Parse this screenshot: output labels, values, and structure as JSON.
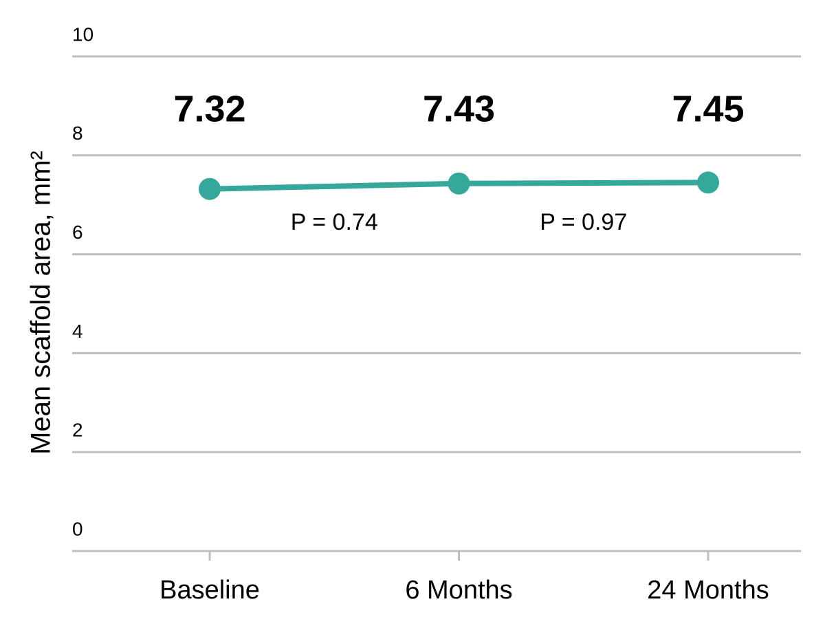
{
  "chart_data": {
    "type": "line",
    "y_axis_label": "Mean scaffold area, mm²",
    "categories": [
      "Baseline",
      "6 Months",
      "24 Months"
    ],
    "values": [
      7.32,
      7.43,
      7.45
    ],
    "color": "#35a89b",
    "annotations": [
      "P = 0.74",
      "P = 0.97"
    ],
    "ylim": [
      0,
      10
    ],
    "yticks": [
      0,
      2,
      4,
      6,
      8,
      10
    ],
    "grid": true
  }
}
